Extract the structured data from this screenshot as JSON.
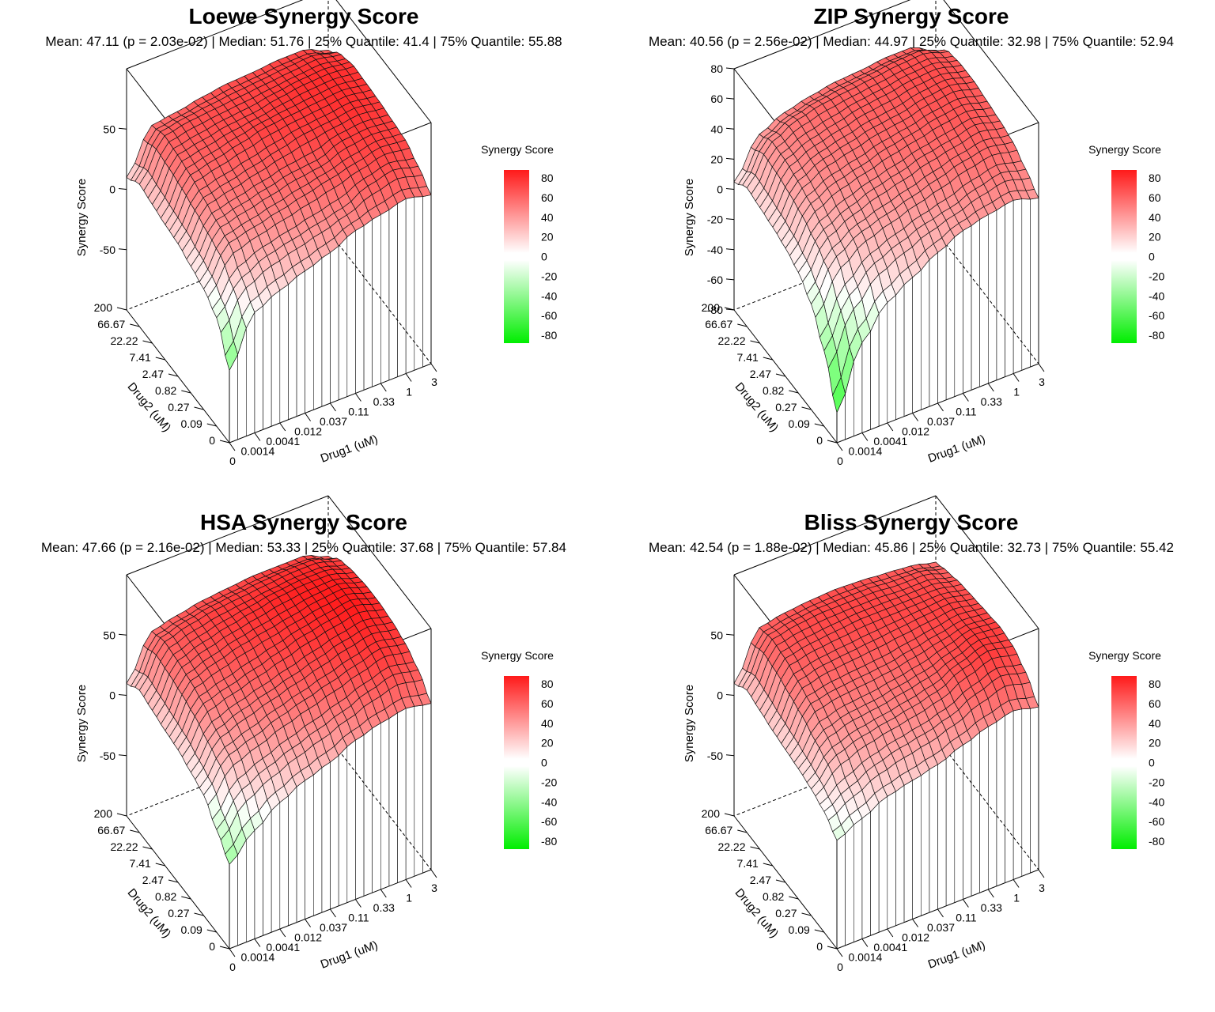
{
  "chart_data": [
    {
      "type": "surface3d",
      "title": "Loewe Synergy Score",
      "subtitle": "Mean: 47.11 (p = 2.03e-02) | Median: 51.76 | 25% Quantile: 41.4 | 75% Quantile: 55.88",
      "xlabel": "Drug1 (uM)",
      "ylabel": "Drug2 (uM)",
      "zlabel": "Synergy Score",
      "x_ticks": [
        "0",
        "0.0014",
        "0.0041",
        "0.012",
        "0.037",
        "0.11",
        "0.33",
        "1",
        "3"
      ],
      "y_ticks": [
        "0",
        "0.09",
        "0.27",
        "0.82",
        "2.47",
        "7.41",
        "22.22",
        "66.67",
        "200"
      ],
      "z_ticks": [
        -50,
        0,
        50
      ],
      "zlim": [
        -100,
        100
      ],
      "legend_title": "Synergy Score",
      "legend_ticks": [
        80,
        60,
        40,
        20,
        0,
        -20,
        -40,
        -60,
        -80
      ],
      "low_corner": -40,
      "surface": [
        [
          -40,
          0,
          10,
          18,
          25,
          35,
          40,
          45,
          40
        ],
        [
          -10,
          15,
          25,
          30,
          35,
          40,
          50,
          55,
          50
        ],
        [
          0,
          30,
          35,
          40,
          45,
          50,
          55,
          60,
          58
        ],
        [
          5,
          35,
          40,
          45,
          50,
          52,
          60,
          62,
          60
        ],
        [
          10,
          40,
          45,
          50,
          55,
          60,
          62,
          65,
          62
        ],
        [
          12,
          45,
          50,
          55,
          60,
          62,
          64,
          66,
          63
        ],
        [
          15,
          48,
          52,
          56,
          58,
          62,
          65,
          66,
          64
        ],
        [
          18,
          50,
          54,
          56,
          58,
          60,
          62,
          64,
          60
        ],
        [
          10,
          45,
          48,
          52,
          55,
          56,
          58,
          58,
          50
        ]
      ]
    },
    {
      "type": "surface3d",
      "title": "ZIP Synergy Score",
      "subtitle": "Mean: 40.56 (p = 2.56e-02) | Median: 44.97 | 25% Quantile: 32.98 | 75% Quantile: 52.94",
      "xlabel": "Drug1 (uM)",
      "ylabel": "Drug2 (uM)",
      "zlabel": "Synergy Score",
      "x_ticks": [
        "0",
        "0.0014",
        "0.0041",
        "0.012",
        "0.037",
        "0.11",
        "0.33",
        "1",
        "3"
      ],
      "y_ticks": [
        "0",
        "0.09",
        "0.27",
        "0.82",
        "2.47",
        "7.41",
        "22.22",
        "66.67",
        "200"
      ],
      "z_ticks": [
        -80,
        -60,
        -40,
        -20,
        0,
        20,
        40,
        60,
        80
      ],
      "zlim": [
        -80,
        80
      ],
      "legend_title": "Synergy Score",
      "legend_ticks": [
        80,
        60,
        40,
        20,
        0,
        -20,
        -40,
        -60,
        -80
      ],
      "low_corner": -60,
      "surface": [
        [
          -60,
          -20,
          0,
          10,
          20,
          28,
          32,
          35,
          30
        ],
        [
          -30,
          0,
          15,
          22,
          28,
          32,
          38,
          42,
          38
        ],
        [
          -10,
          15,
          25,
          30,
          35,
          40,
          45,
          48,
          45
        ],
        [
          0,
          22,
          30,
          36,
          40,
          45,
          48,
          52,
          48
        ],
        [
          5,
          28,
          36,
          40,
          45,
          48,
          52,
          54,
          50
        ],
        [
          8,
          32,
          40,
          44,
          48,
          50,
          54,
          56,
          52
        ],
        [
          10,
          35,
          42,
          46,
          50,
          52,
          55,
          56,
          52
        ],
        [
          12,
          36,
          44,
          48,
          50,
          52,
          54,
          55,
          50
        ],
        [
          5,
          30,
          38,
          42,
          45,
          46,
          48,
          48,
          40
        ]
      ]
    },
    {
      "type": "surface3d",
      "title": "HSA Synergy Score",
      "subtitle": "Mean: 47.66 (p = 2.16e-02) | Median: 53.33 | 25% Quantile: 37.68 | 75% Quantile: 57.84",
      "xlabel": "Drug1 (uM)",
      "ylabel": "Drug2 (uM)",
      "zlabel": "Synergy Score",
      "x_ticks": [
        "0",
        "0.0014",
        "0.0041",
        "0.012",
        "0.037",
        "0.11",
        "0.33",
        "1",
        "3"
      ],
      "y_ticks": [
        "0",
        "0.09",
        "0.27",
        "0.82",
        "2.47",
        "7.41",
        "22.22",
        "66.67",
        "200"
      ],
      "z_ticks": [
        -50,
        0,
        50
      ],
      "zlim": [
        -100,
        100
      ],
      "legend_title": "Synergy Score",
      "legend_ticks": [
        80,
        60,
        40,
        20,
        0,
        -20,
        -40,
        -60,
        -80
      ],
      "low_corner": -30,
      "surface": [
        [
          -30,
          -10,
          5,
          15,
          22,
          32,
          38,
          42,
          38
        ],
        [
          -15,
          10,
          20,
          28,
          35,
          42,
          50,
          56,
          52
        ],
        [
          0,
          25,
          32,
          40,
          46,
          52,
          58,
          64,
          60
        ],
        [
          5,
          32,
          40,
          46,
          52,
          58,
          64,
          68,
          64
        ],
        [
          10,
          40,
          46,
          52,
          58,
          64,
          68,
          72,
          66
        ],
        [
          12,
          45,
          52,
          58,
          62,
          66,
          70,
          72,
          66
        ],
        [
          15,
          48,
          55,
          60,
          64,
          68,
          70,
          70,
          64
        ],
        [
          18,
          50,
          56,
          60,
          62,
          64,
          66,
          66,
          60
        ],
        [
          10,
          45,
          50,
          54,
          56,
          58,
          58,
          58,
          50
        ]
      ]
    },
    {
      "type": "surface3d",
      "title": "Bliss Synergy Score",
      "subtitle": "Mean: 42.54 (p = 1.88e-02) | Median: 45.86 | 25% Quantile: 32.73 | 75% Quantile: 55.42",
      "xlabel": "Drug1 (uM)",
      "ylabel": "Drug2 (uM)",
      "zlabel": "Synergy Score",
      "x_ticks": [
        "0",
        "0.0014",
        "0.0041",
        "0.012",
        "0.037",
        "0.11",
        "0.33",
        "1",
        "3"
      ],
      "y_ticks": [
        "0",
        "0.09",
        "0.27",
        "0.82",
        "2.47",
        "7.41",
        "22.22",
        "66.67",
        "200"
      ],
      "z_ticks": [
        -50,
        0,
        50
      ],
      "zlim": [
        -100,
        100
      ],
      "legend_title": "Synergy Score",
      "legend_ticks": [
        80,
        60,
        40,
        20,
        0,
        -20,
        -40,
        -60,
        -80
      ],
      "low_corner": -10,
      "surface": [
        [
          -10,
          0,
          10,
          15,
          20,
          28,
          35,
          40,
          35
        ],
        [
          0,
          12,
          22,
          28,
          32,
          38,
          48,
          55,
          50
        ],
        [
          5,
          25,
          32,
          36,
          40,
          45,
          55,
          62,
          58
        ],
        [
          8,
          32,
          38,
          40,
          44,
          48,
          55,
          62,
          60
        ],
        [
          10,
          40,
          44,
          46,
          48,
          52,
          56,
          60,
          58
        ],
        [
          12,
          45,
          50,
          52,
          54,
          56,
          58,
          60,
          56
        ],
        [
          15,
          50,
          54,
          56,
          58,
          58,
          58,
          58,
          54
        ],
        [
          18,
          52,
          56,
          58,
          58,
          58,
          56,
          56,
          50
        ],
        [
          10,
          48,
          52,
          54,
          55,
          54,
          52,
          50,
          45
        ]
      ]
    }
  ]
}
